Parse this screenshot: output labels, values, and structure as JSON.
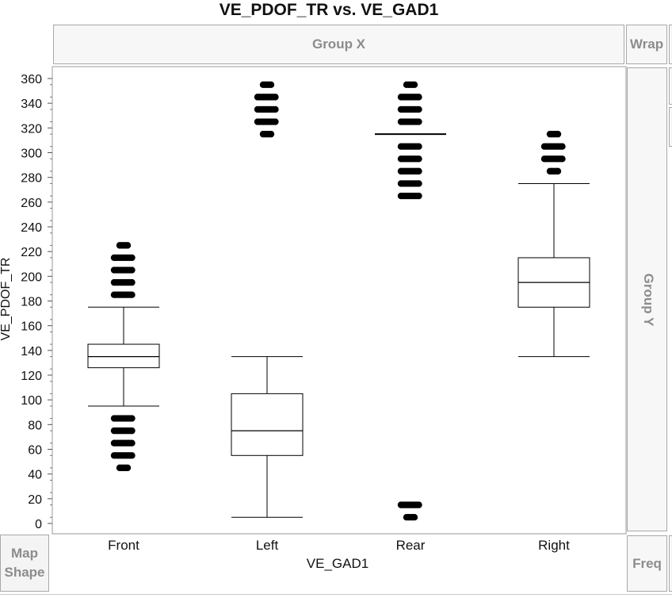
{
  "window": {
    "title": "VE_PDOF_TR vs. VE_GAD1"
  },
  "drop_zones": {
    "group_x": "Group X",
    "group_y": "Group Y",
    "wrap": "Wrap",
    "freq": "Freq",
    "map_shape_line1": "Map",
    "map_shape_line2": "Shape"
  },
  "chart_data": {
    "type": "box",
    "title": "VE_PDOF_TR vs. VE_GAD1",
    "xlabel": "VE_GAD1",
    "ylabel": "VE_PDOF_TR",
    "ylim": [
      0,
      360
    ],
    "yticks": [
      0,
      20,
      40,
      60,
      80,
      100,
      120,
      140,
      160,
      180,
      200,
      220,
      240,
      260,
      280,
      300,
      320,
      340,
      360
    ],
    "categories": [
      "Front",
      "Left",
      "Rear",
      "Right"
    ],
    "boxes": [
      {
        "category": "Front",
        "q1": 126,
        "median": 135,
        "q3": 145,
        "whisker_low": 95,
        "whisker_high": 175,
        "outliers": [
          45,
          55,
          65,
          75,
          85,
          185,
          195,
          205,
          215,
          225
        ]
      },
      {
        "category": "Left",
        "q1": 55,
        "median": 75,
        "q3": 105,
        "whisker_low": 5,
        "whisker_high": 135,
        "outliers": [
          315,
          325,
          335,
          345,
          355
        ]
      },
      {
        "category": "Rear",
        "q1": 315,
        "median": 315,
        "q3": 315,
        "whisker_low": 315,
        "whisker_high": 315,
        "outliers": [
          5,
          15,
          265,
          275,
          285,
          295,
          305,
          325,
          335,
          345,
          355
        ]
      },
      {
        "category": "Right",
        "q1": 175,
        "median": 195,
        "q3": 215,
        "whisker_low": 135,
        "whisker_high": 275,
        "outliers": [
          285,
          295,
          305,
          315
        ]
      }
    ],
    "grid": false
  }
}
